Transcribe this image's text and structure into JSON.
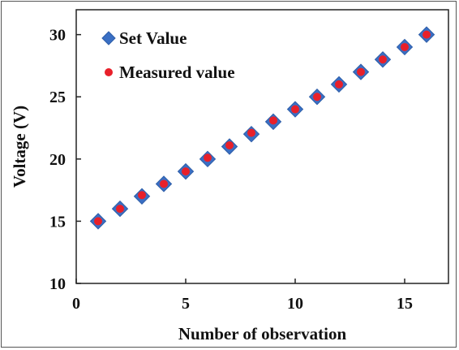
{
  "chart_data": {
    "type": "scatter",
    "xlabel": "Number of observation",
    "ylabel": "Voltage (V)",
    "xlim": [
      0,
      17
    ],
    "ylim": [
      10,
      32
    ],
    "xticks": [
      0,
      5,
      10,
      15
    ],
    "yticks": [
      10,
      15,
      20,
      25,
      30
    ],
    "grid": false,
    "legend_position": "top-left",
    "series": [
      {
        "name": "Set Value",
        "marker": "diamond",
        "color": "#3a6fc4",
        "x": [
          1,
          2,
          3,
          4,
          5,
          6,
          7,
          8,
          9,
          10,
          11,
          12,
          13,
          14,
          15,
          16
        ],
        "y": [
          15,
          16,
          17,
          18,
          19,
          20,
          21,
          22,
          23,
          24,
          25,
          26,
          27,
          28,
          29,
          30
        ]
      },
      {
        "name": "Measured value",
        "marker": "circle",
        "color": "#e8202a",
        "x": [
          1,
          2,
          3,
          4,
          5,
          6,
          7,
          8,
          9,
          10,
          11,
          12,
          13,
          14,
          15,
          16
        ],
        "y": [
          15.0,
          16.0,
          17.1,
          18.0,
          19.0,
          20.1,
          21.1,
          22.1,
          23.1,
          24.0,
          25.0,
          26.0,
          27.0,
          28.0,
          29.0,
          30.0
        ]
      }
    ]
  }
}
